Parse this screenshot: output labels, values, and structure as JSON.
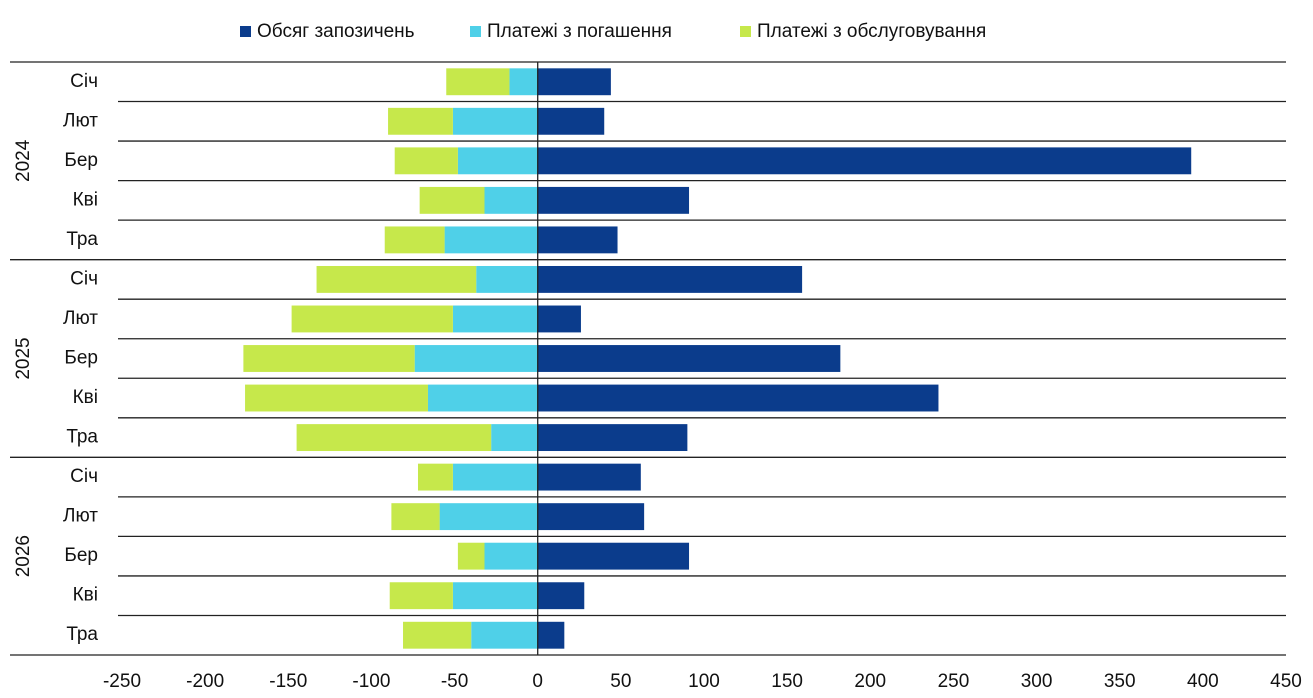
{
  "chart_data": {
    "type": "bar",
    "orientation": "horizontal",
    "stacked": true,
    "groups": [
      {
        "label": "2024",
        "categories": [
          "Січ",
          "Лют",
          "Бер",
          "Кві",
          "Тра"
        ]
      },
      {
        "label": "2025",
        "categories": [
          "Січ",
          "Лют",
          "Бер",
          "Кві",
          "Тра"
        ]
      },
      {
        "label": "2026",
        "categories": [
          "Січ",
          "Лют",
          "Бер",
          "Кві",
          "Тра"
        ]
      }
    ],
    "series": [
      {
        "name": "Обсяг запозичень",
        "color": "#0b3c8c",
        "values": [
          44,
          40,
          393,
          91,
          48,
          159,
          26,
          182,
          241,
          90,
          62,
          64,
          91,
          28,
          16
        ]
      },
      {
        "name": "Платежі з погашення",
        "color": "#4fd0e8",
        "values": [
          -17,
          -51,
          -48,
          -32,
          -56,
          -37,
          -51,
          -74,
          -66,
          -28,
          -51,
          -59,
          -32,
          -51,
          -40
        ]
      },
      {
        "name": "Платежі з обслуговування",
        "color": "#c6e84b",
        "values": [
          -38,
          -39,
          -38,
          -39,
          -36,
          -96,
          -97,
          -103,
          -110,
          -117,
          -21,
          -29,
          -16,
          -38,
          -41
        ]
      }
    ],
    "xlim": [
      -250,
      450
    ],
    "xticks": [
      -250,
      -200,
      -150,
      -100,
      -50,
      0,
      50,
      100,
      150,
      200,
      250,
      300,
      350,
      400,
      450
    ],
    "legend": "top",
    "grid": true
  }
}
